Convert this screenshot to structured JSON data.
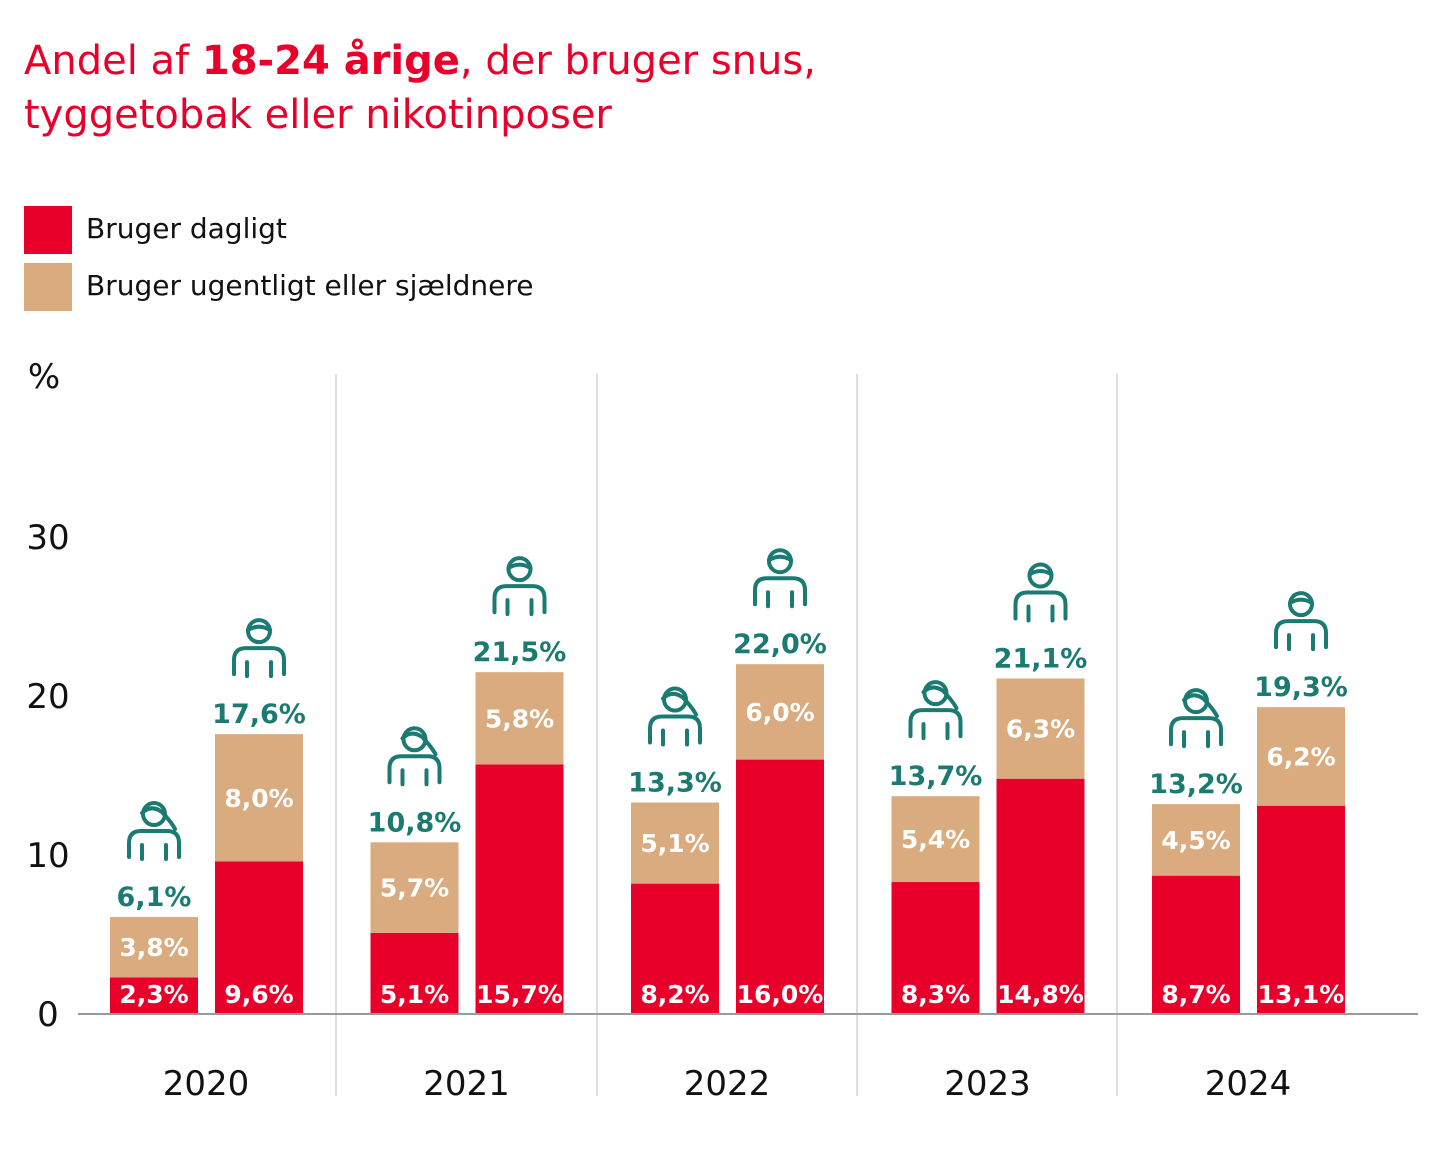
{
  "title": {
    "pre": "Andel af ",
    "bold": "18-24 årige",
    "post": ", der bruger snus,",
    "line2": "tyggetobak eller nikotinposer"
  },
  "legend": [
    {
      "label": "Bruger dagligt",
      "color": "#e8002a"
    },
    {
      "label": "Bruger ugentligt eller sjældnere",
      "color": "#d9ab7f"
    }
  ],
  "colors": {
    "daily": "#e8002a",
    "weekly": "#d9ab7f",
    "total": "#1b7b72",
    "title": "#e8002a"
  },
  "chart_data": {
    "type": "bar",
    "stacked": true,
    "ylabel": "%",
    "ylim": [
      0,
      30
    ],
    "yticks": [
      "0",
      "10",
      "20",
      "30"
    ],
    "grid": false,
    "legend_position": "top-left",
    "categories": [
      "2020",
      "2021",
      "2022",
      "2023",
      "2024"
    ],
    "groups": [
      {
        "year": "2020",
        "bars": [
          {
            "gender": "female",
            "daily": 2.3,
            "weekly": 3.8,
            "total": 6.1,
            "daily_label": "2,3%",
            "weekly_label": "3,8%",
            "total_label": "6,1%"
          },
          {
            "gender": "male",
            "daily": 9.6,
            "weekly": 8.0,
            "total": 17.6,
            "daily_label": "9,6%",
            "weekly_label": "8,0%",
            "total_label": "17,6%"
          }
        ]
      },
      {
        "year": "2021",
        "bars": [
          {
            "gender": "female",
            "daily": 5.1,
            "weekly": 5.7,
            "total": 10.8,
            "daily_label": "5,1%",
            "weekly_label": "5,7%",
            "total_label": "10,8%"
          },
          {
            "gender": "male",
            "daily": 15.7,
            "weekly": 5.8,
            "total": 21.5,
            "daily_label": "15,7%",
            "weekly_label": "5,8%",
            "total_label": "21,5%"
          }
        ]
      },
      {
        "year": "2022",
        "bars": [
          {
            "gender": "female",
            "daily": 8.2,
            "weekly": 5.1,
            "total": 13.3,
            "daily_label": "8,2%",
            "weekly_label": "5,1%",
            "total_label": "13,3%"
          },
          {
            "gender": "male",
            "daily": 16.0,
            "weekly": 6.0,
            "total": 22.0,
            "daily_label": "16,0%",
            "weekly_label": "6,0%",
            "total_label": "22,0%"
          }
        ]
      },
      {
        "year": "2023",
        "bars": [
          {
            "gender": "female",
            "daily": 8.3,
            "weekly": 5.4,
            "total": 13.7,
            "daily_label": "8,3%",
            "weekly_label": "5,4%",
            "total_label": "13,7%"
          },
          {
            "gender": "male",
            "daily": 14.8,
            "weekly": 6.3,
            "total": 21.1,
            "daily_label": "14,8%",
            "weekly_label": "6,3%",
            "total_label": "21,1%"
          }
        ]
      },
      {
        "year": "2024",
        "bars": [
          {
            "gender": "female",
            "daily": 8.7,
            "weekly": 4.5,
            "total": 13.2,
            "daily_label": "8,7%",
            "weekly_label": "4,5%",
            "total_label": "13,2%"
          },
          {
            "gender": "male",
            "daily": 13.1,
            "weekly": 6.2,
            "total": 19.3,
            "daily_label": "13,1%",
            "weekly_label": "6,2%",
            "total_label": "19,3%"
          }
        ]
      }
    ]
  }
}
